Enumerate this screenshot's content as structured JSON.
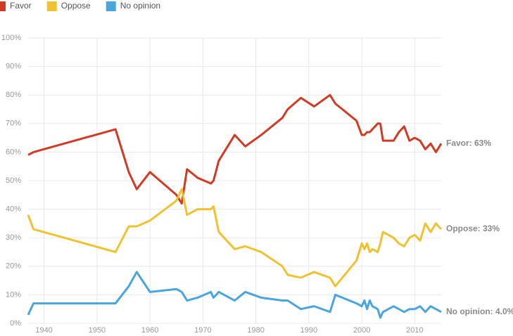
{
  "chart_data": {
    "type": "line",
    "x": [
      1937,
      1938,
      1953.5,
      1956,
      1957.5,
      1960,
      1965,
      1966,
      1967,
      1969,
      1971.5,
      1972,
      1973,
      1976,
      1978,
      1981,
      1985,
      1986,
      1988.5,
      1991,
      1994,
      1995,
      1999,
      2000,
      2000.5,
      2001,
      2001.5,
      2002,
      2003,
      2003.5,
      2004,
      2006,
      2007,
      2008,
      2009,
      2010,
      2011,
      2012,
      2013,
      2014,
      2015
    ],
    "series": [
      {
        "name": "Favor",
        "color": "#d23a26",
        "end_label": "Favor: 63%",
        "values": [
          59,
          60,
          68,
          53,
          47,
          53,
          45,
          42,
          54,
          51,
          49,
          50,
          57,
          66,
          62,
          66,
          72,
          75,
          79,
          76,
          80,
          77,
          71,
          66,
          66,
          67,
          67,
          68,
          70,
          70,
          64,
          64,
          67,
          69,
          64,
          65,
          64,
          61,
          63,
          60,
          63
        ]
      },
      {
        "name": "Oppose",
        "color": "#eec32f",
        "end_label": "Oppose: 33%",
        "values": [
          38,
          33,
          25,
          34,
          34,
          36,
          43,
          47,
          38,
          40,
          40,
          41,
          32,
          26,
          27,
          25,
          20,
          17,
          16,
          18,
          16,
          13,
          22,
          28,
          26,
          28,
          25,
          26,
          25,
          28,
          32,
          30,
          28,
          27,
          30,
          31,
          29,
          35,
          32,
          35,
          33
        ]
      },
      {
        "name": "No opinion",
        "color": "#4aa5dc",
        "end_label": "No opinion: 4.0%",
        "values": [
          3,
          7,
          7,
          13,
          18,
          11,
          12,
          11,
          8,
          9,
          11,
          9,
          11,
          8,
          11,
          9,
          8,
          8,
          5,
          6,
          4,
          10,
          7,
          6,
          8,
          5,
          8,
          6,
          5,
          2,
          4,
          6,
          5,
          4,
          5,
          5,
          6,
          4,
          6,
          5,
          4
        ]
      }
    ],
    "xlim": [
      1937,
      2015
    ],
    "xticks": [
      1940,
      1950,
      1960,
      1970,
      1980,
      1990,
      2000,
      2010
    ],
    "ylim": [
      0,
      100
    ],
    "yticks": [
      {
        "value": 0,
        "label": "0%"
      },
      {
        "value": 10,
        "label": "10%"
      },
      {
        "value": 20,
        "label": "20%"
      },
      {
        "value": 30,
        "label": "30%"
      },
      {
        "value": 40,
        "label": "40%"
      },
      {
        "value": 50,
        "label": "50%"
      },
      {
        "value": 60,
        "label": "60%"
      },
      {
        "value": 70,
        "label": "70%"
      },
      {
        "value": 80,
        "label": "80%"
      },
      {
        "value": 90,
        "label": "90%"
      },
      {
        "value": 100,
        "label": "100%"
      }
    ],
    "grid": true
  }
}
